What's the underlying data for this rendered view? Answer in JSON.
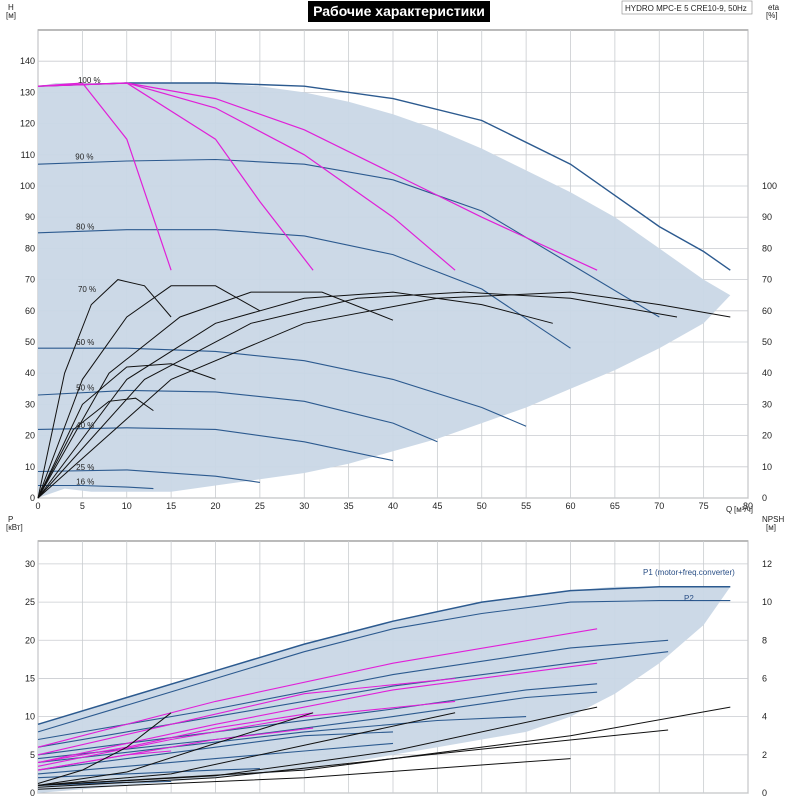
{
  "chart_data": [
    {
      "type": "line",
      "title": "Рабочие характеристики",
      "model": "HYDRO MPC-E 5 CRE10-9, 50Hz",
      "ylabel": "H",
      "yunit": "[м]",
      "y2label": "eta",
      "y2unit": "[%]",
      "xlabel": "Q",
      "xunit": "[м³/ч]",
      "xlim": [
        0,
        80
      ],
      "ylim": [
        0,
        150
      ],
      "y2lim": [
        0,
        150
      ],
      "grid": true,
      "x_ticks": [
        "0",
        "5",
        "10",
        "15",
        "20",
        "25",
        "30",
        "35",
        "40",
        "45",
        "50",
        "55",
        "60",
        "65",
        "70",
        "75",
        "80"
      ],
      "y_ticks": [
        "0",
        "10",
        "20",
        "30",
        "40",
        "50",
        "60",
        "70",
        "80",
        "90",
        "100",
        "110",
        "120",
        "130",
        "140"
      ],
      "y2_ticks": [
        "0",
        "10",
        "20",
        "30",
        "40",
        "50",
        "60",
        "70",
        "80",
        "90",
        "100"
      ],
      "speed_labels": [
        {
          "text": "100 %",
          "q": 4.5,
          "h": 133
        },
        {
          "text": "90 %",
          "q": 4.2,
          "h": 108.5
        },
        {
          "text": "80 %",
          "q": 4.3,
          "h": 86
        },
        {
          "text": "70 %",
          "q": 4.5,
          "h": 66
        },
        {
          "text": "60 %",
          "q": 4.3,
          "h": 49
        },
        {
          "text": "50 %",
          "q": 4.3,
          "h": 34.5
        },
        {
          "text": "40 %",
          "q": 4.3,
          "h": 22.5
        },
        {
          "text": "25 %",
          "q": 4.3,
          "h": 9
        },
        {
          "text": "16 %",
          "q": 4.3,
          "h": 4.3
        }
      ],
      "envelope": {
        "q": [
          0,
          3,
          6,
          10,
          15,
          20,
          25,
          30,
          35,
          40,
          45,
          50,
          55,
          60,
          65,
          70,
          75,
          78,
          75,
          70,
          65,
          60,
          55,
          50,
          45,
          40,
          35,
          30,
          25,
          20,
          15,
          10,
          5,
          2,
          0
        ],
        "h": [
          0,
          3,
          2,
          2,
          2,
          4,
          6,
          8,
          11,
          15,
          19,
          24,
          29,
          35,
          41,
          48,
          56,
          65,
          70,
          80,
          90,
          98,
          105,
          112,
          118,
          123,
          127,
          130,
          132,
          133,
          133,
          133,
          133,
          133,
          132
        ]
      },
      "outer_curve": {
        "q": [
          0,
          10,
          20,
          30,
          40,
          50,
          60,
          65,
          70,
          75,
          78
        ],
        "h": [
          132,
          133,
          133,
          132,
          128,
          121,
          107,
          97,
          87,
          79,
          73
        ]
      },
      "speed_curves": [
        {
          "name": "90 %",
          "q": [
            0,
            10,
            20,
            30,
            40,
            50,
            60,
            70
          ],
          "h": [
            107,
            108,
            108.5,
            107,
            102,
            92,
            75,
            58
          ]
        },
        {
          "name": "80 %",
          "q": [
            0,
            10,
            20,
            30,
            40,
            50,
            60
          ],
          "h": [
            85,
            86,
            86,
            84,
            78,
            67,
            48
          ]
        },
        {
          "name": "60 %",
          "q": [
            0,
            10,
            20,
            30,
            40,
            50,
            55
          ],
          "h": [
            48,
            48,
            47,
            44,
            38,
            29,
            23
          ]
        },
        {
          "name": "50 %",
          "q": [
            0,
            10,
            20,
            30,
            40,
            45
          ],
          "h": [
            33,
            34.5,
            34,
            31,
            24,
            18
          ]
        },
        {
          "name": "40 %",
          "q": [
            0,
            10,
            20,
            30,
            40
          ],
          "h": [
            22,
            22.5,
            22,
            18,
            12
          ]
        },
        {
          "name": "25 %",
          "q": [
            0,
            10,
            20,
            25
          ],
          "h": [
            8.5,
            9,
            7,
            5
          ]
        },
        {
          "name": "16 %",
          "q": [
            0,
            5,
            10,
            13
          ],
          "h": [
            4,
            4,
            3.5,
            3
          ]
        }
      ],
      "pump_curves": [
        {
          "q": [
            0,
            5,
            10,
            15
          ],
          "h": [
            132,
            133,
            115,
            73
          ]
        },
        {
          "q": [
            0,
            10,
            20,
            25,
            31
          ],
          "h": [
            132,
            133,
            115,
            95,
            73
          ]
        },
        {
          "q": [
            0,
            10,
            20,
            30,
            40,
            47
          ],
          "h": [
            132,
            133,
            125,
            110,
            90,
            73
          ]
        },
        {
          "q": [
            0,
            10,
            20,
            30,
            40,
            50,
            63
          ],
          "h": [
            132,
            133,
            128,
            118,
            104,
            90,
            73
          ]
        }
      ],
      "qh_curves": [
        {
          "q": [
            0,
            3,
            6,
            9,
            12,
            15
          ],
          "h": [
            0,
            40,
            62,
            70,
            68,
            58
          ]
        },
        {
          "q": [
            0,
            5,
            10,
            15,
            20,
            25
          ],
          "h": [
            0,
            38,
            58,
            68,
            68,
            60
          ]
        },
        {
          "q": [
            0,
            8,
            16,
            24,
            32,
            40
          ],
          "h": [
            0,
            40,
            58,
            66,
            66,
            57
          ]
        },
        {
          "q": [
            0,
            10,
            20,
            30,
            40,
            50,
            58
          ],
          "h": [
            0,
            38,
            56,
            64,
            66,
            62,
            56
          ]
        },
        {
          "q": [
            0,
            12,
            24,
            36,
            48,
            60,
            72
          ],
          "h": [
            0,
            38,
            56,
            64,
            66,
            64,
            58
          ]
        },
        {
          "q": [
            0,
            15,
            30,
            45,
            60,
            70,
            78
          ],
          "h": [
            0,
            38,
            56,
            64,
            66,
            62,
            58
          ]
        },
        {
          "q": [
            0,
            5,
            10,
            15,
            20
          ],
          "h": [
            0,
            30,
            42,
            43,
            38
          ]
        },
        {
          "q": [
            0,
            4,
            8,
            11,
            13
          ],
          "h": [
            0,
            22,
            31,
            32,
            28
          ]
        }
      ]
    },
    {
      "type": "line",
      "ylabel": "P",
      "yunit": "[кВт]",
      "y2label": "NPSH",
      "y2unit": "[м]",
      "xlim": [
        0,
        80
      ],
      "ylim": [
        0,
        33
      ],
      "y2lim": [
        0,
        13.2
      ],
      "grid": true,
      "y_ticks": [
        "0",
        "5",
        "10",
        "15",
        "20",
        "25",
        "30"
      ],
      "y2_ticks": [
        "0",
        "2",
        "4",
        "6",
        "8",
        "10",
        "12"
      ],
      "series": [
        {
          "name": "P1 (motor+freq.converter)",
          "q": [
            0,
            10,
            20,
            30,
            40,
            50,
            60,
            70,
            78
          ],
          "p": [
            9,
            12.5,
            16,
            19.5,
            22.5,
            25,
            26.5,
            27,
            27
          ]
        },
        {
          "name": "P2",
          "q": [
            0,
            10,
            20,
            30,
            40,
            50,
            60,
            70,
            78
          ],
          "p": [
            8,
            11.5,
            15,
            18.5,
            21.5,
            23.5,
            25,
            25.2,
            25.2
          ]
        }
      ],
      "envelope": {
        "q": [
          0,
          10,
          20,
          30,
          40,
          50,
          60,
          65,
          70,
          75,
          78,
          75,
          70,
          65,
          60,
          55,
          50,
          45,
          40,
          35,
          30,
          25,
          20,
          15,
          10,
          5,
          0
        ],
        "p": [
          9,
          12.5,
          16,
          19.5,
          22.5,
          25,
          26.5,
          27,
          27,
          27,
          27,
          22,
          17,
          13,
          10,
          8,
          7,
          6,
          5,
          4,
          3,
          2.5,
          2,
          1.5,
          1,
          0.5,
          0
        ]
      },
      "power_curves": [
        {
          "q": [
            0,
            5,
            10,
            15
          ],
          "p": [
            3,
            4,
            5,
            5.5
          ]
        },
        {
          "q": [
            0,
            10,
            20,
            31
          ],
          "p": [
            4,
            6,
            8.5,
            10.5
          ]
        },
        {
          "q": [
            0,
            15,
            30,
            47
          ],
          "p": [
            5,
            9,
            13,
            15
          ]
        },
        {
          "q": [
            0,
            20,
            40,
            63
          ],
          "p": [
            6,
            12,
            17,
            21.5
          ]
        },
        {
          "q": [
            0,
            10,
            20,
            31
          ],
          "p": [
            3,
            5,
            7,
            8.5
          ]
        },
        {
          "q": [
            0,
            15,
            30,
            47
          ],
          "p": [
            3.5,
            7,
            10,
            12
          ]
        },
        {
          "q": [
            0,
            20,
            40,
            63
          ],
          "p": [
            4,
            9,
            13.5,
            17
          ]
        }
      ],
      "blue_power_curves": [
        {
          "q": [
            0,
            20,
            40,
            60,
            71
          ],
          "p": [
            7,
            11,
            15.5,
            19,
            20
          ]
        },
        {
          "q": [
            0,
            20,
            40,
            60,
            71
          ],
          "p": [
            6,
            10,
            14,
            17,
            18.5
          ]
        },
        {
          "q": [
            0,
            20,
            40,
            55,
            63
          ],
          "p": [
            5,
            8,
            11,
            13.5,
            14.3
          ]
        },
        {
          "q": [
            0,
            20,
            40,
            55,
            63
          ],
          "p": [
            4.5,
            7,
            10,
            12.5,
            13.2
          ]
        },
        {
          "q": [
            0,
            15,
            30,
            45,
            55
          ],
          "p": [
            4,
            6,
            8,
            9.5,
            10
          ]
        },
        {
          "q": [
            0,
            10,
            20,
            30,
            40
          ],
          "p": [
            3,
            4.5,
            6,
            7.5,
            8
          ]
        },
        {
          "q": [
            0,
            10,
            20,
            30,
            40
          ],
          "p": [
            2.5,
            3.5,
            4.5,
            5.5,
            6.5
          ]
        },
        {
          "q": [
            0,
            10,
            20,
            25
          ],
          "p": [
            2,
            2.5,
            3,
            3.2
          ]
        },
        {
          "q": [
            0,
            5,
            10,
            15
          ],
          "p": [
            1,
            1.2,
            1.4,
            1.5
          ]
        }
      ],
      "npsh_curves": [
        {
          "q": [
            0,
            5,
            10,
            15
          ],
          "n": [
            0.5,
            1.2,
            2.4,
            4.2
          ]
        },
        {
          "q": [
            0,
            10,
            20,
            31
          ],
          "n": [
            0.4,
            1.1,
            2.6,
            4.2
          ]
        },
        {
          "q": [
            0,
            15,
            30,
            47
          ],
          "n": [
            0.4,
            1.0,
            2.5,
            4.2
          ]
        },
        {
          "q": [
            0,
            20,
            40,
            63
          ],
          "n": [
            0.4,
            0.9,
            2.2,
            4.5
          ]
        },
        {
          "q": [
            0,
            30,
            60,
            78
          ],
          "n": [
            0.4,
            1.2,
            3.0,
            4.5
          ]
        },
        {
          "q": [
            0,
            20,
            50,
            71
          ],
          "n": [
            0.3,
            0.8,
            2.3,
            3.3
          ]
        },
        {
          "q": [
            0,
            30,
            60
          ],
          "n": [
            0.2,
            0.8,
            1.8
          ]
        }
      ]
    }
  ]
}
